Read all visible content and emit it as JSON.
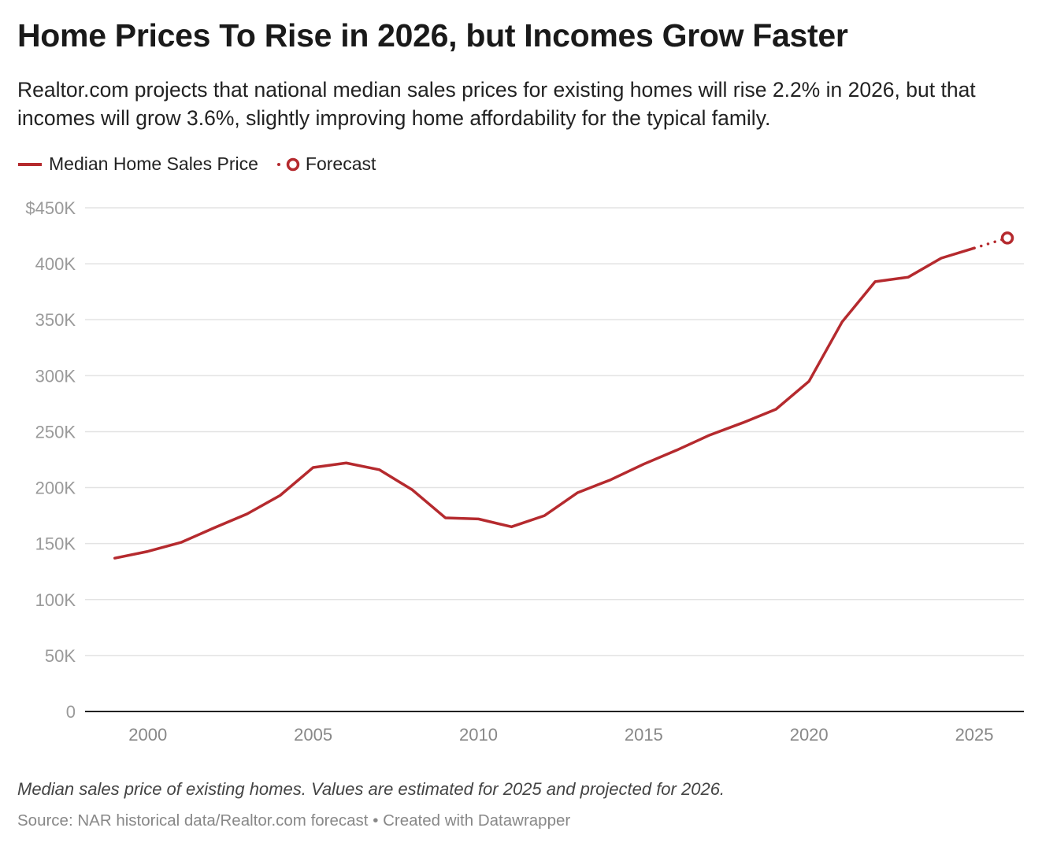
{
  "title": "Home Prices To Rise in 2026, but Incomes Grow Faster",
  "subtitle": "Realtor.com projects that national median sales prices for existing homes will rise 2.2% in 2026, but that incomes will grow 3.6%, slightly improving home affordability for the typical family.",
  "notes": "Median sales price of existing homes. Values are estimated for 2025 and projected for 2026.",
  "source": "Source: NAR historical data/Realtor.com forecast • Created with Datawrapper",
  "colors": {
    "line": "#b52a2e",
    "grid": "#e3e3e3",
    "axis_text": "#9a9a9a"
  },
  "chart_data": {
    "type": "line",
    "legend": [
      "Median Home Sales Price",
      "Forecast"
    ],
    "legend_placement": "top-left",
    "x": [
      1999,
      2000,
      2001,
      2002,
      2003,
      2004,
      2005,
      2006,
      2007,
      2008,
      2009,
      2010,
      2011,
      2012,
      2013,
      2014,
      2015,
      2016,
      2017,
      2018,
      2019,
      2020,
      2021,
      2022,
      2023,
      2024,
      2025
    ],
    "series": [
      {
        "name": "Median Home Sales Price",
        "values": [
          137,
          143,
          151,
          164,
          176.5,
          193,
          218,
          222,
          216,
          198,
          173,
          172,
          165,
          175,
          195.5,
          207,
          221,
          233.5,
          247,
          258,
          270,
          295,
          348,
          384,
          388,
          405,
          414
        ]
      },
      {
        "name": "Forecast",
        "x": [
          2025,
          2026
        ],
        "values": [
          414,
          423
        ]
      }
    ],
    "units": "thousands of USD",
    "xlim": [
      1998.1,
      2026.5
    ],
    "ylim": [
      0,
      450
    ],
    "y_ticks": [
      0,
      50,
      100,
      150,
      200,
      250,
      300,
      350,
      400,
      450
    ],
    "y_tick_labels": [
      "0",
      "50K",
      "100K",
      "150K",
      "200K",
      "250K",
      "300K",
      "350K",
      "400K",
      "$450K"
    ],
    "x_ticks": [
      2000,
      2005,
      2010,
      2015,
      2020,
      2025
    ],
    "x_tick_labels": [
      "2000",
      "2005",
      "2010",
      "2015",
      "2020",
      "2025"
    ],
    "grid": "horizontal"
  }
}
